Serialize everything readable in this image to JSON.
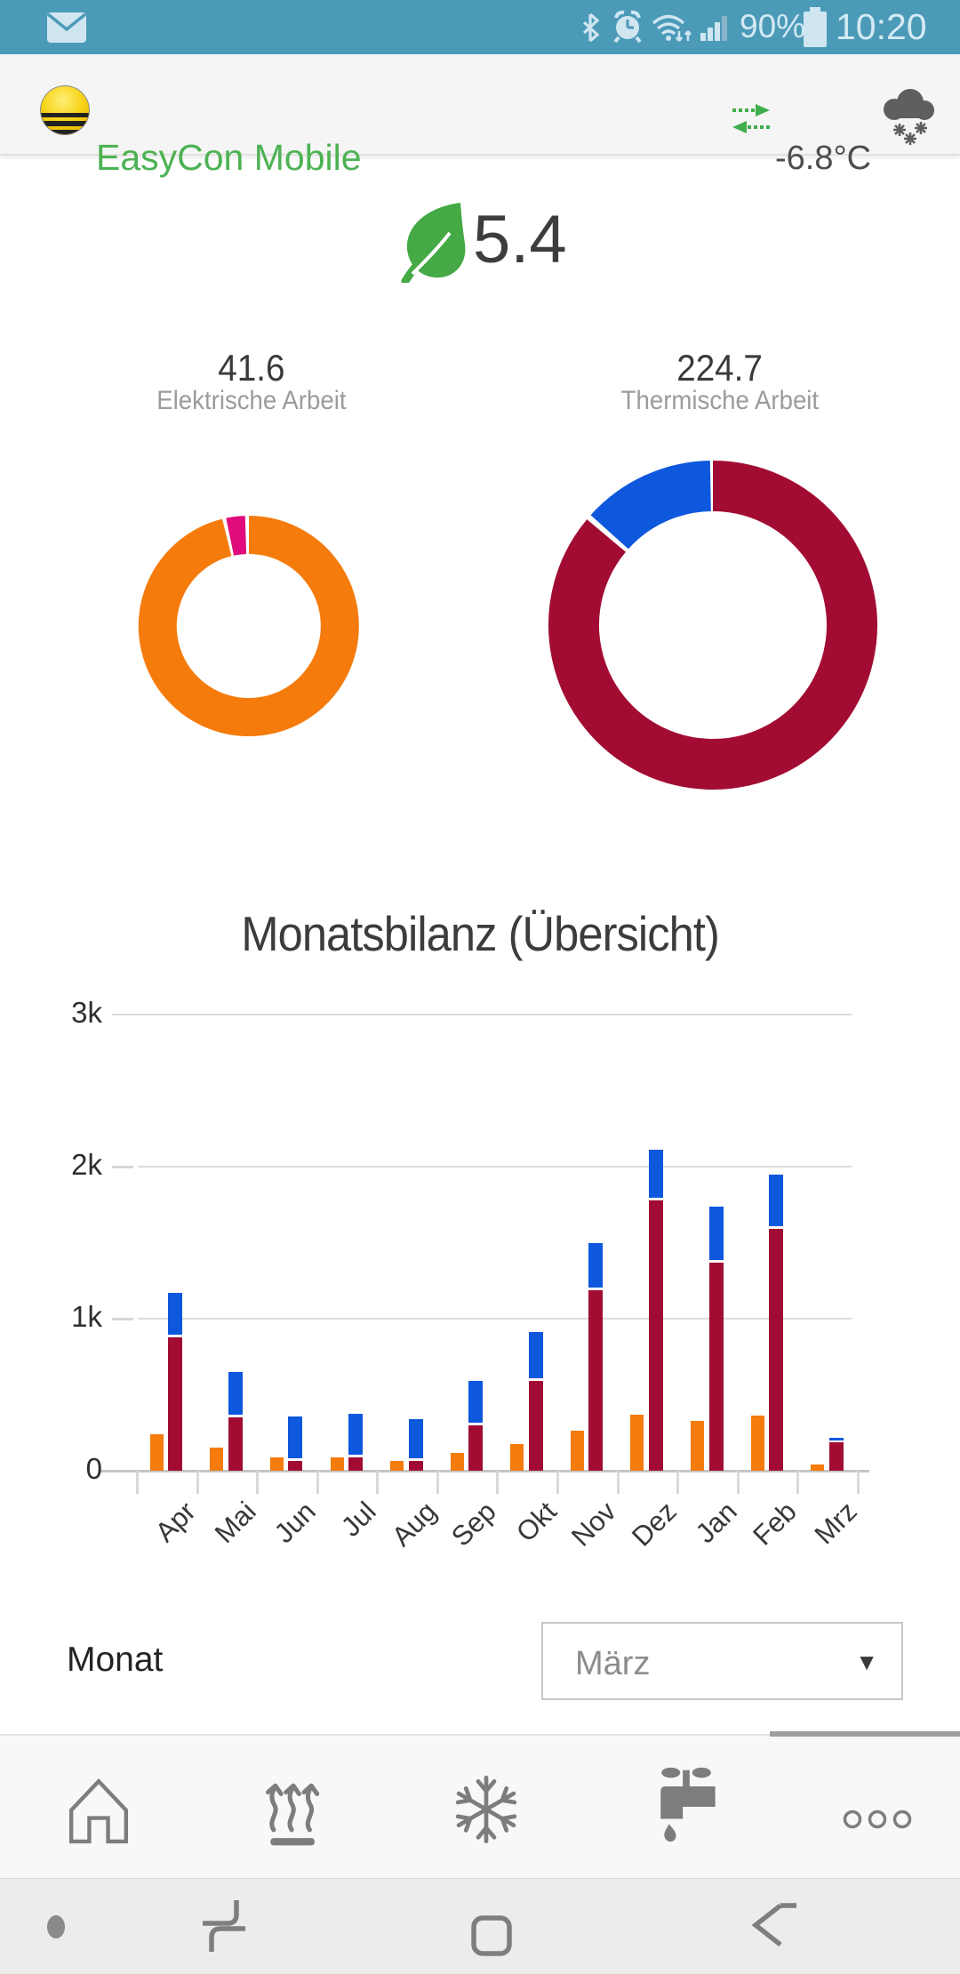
{
  "status_bar": {
    "time": "10:20",
    "battery": "90%",
    "icons": [
      "message-icon",
      "bluetooth-icon",
      "alarm-icon",
      "wifi-icon",
      "signal-icon",
      "battery-icon"
    ]
  },
  "header": {
    "app_title": "EasyCon Mobile",
    "temperature": "-6.8°C",
    "icons": [
      "sun-logo",
      "sync-arrows-icon",
      "snow-cloud-icon"
    ]
  },
  "summary": {
    "efficiency_value": "5.4",
    "icon": "leaf-icon"
  },
  "chart_data": [
    {
      "type": "donut",
      "value_label": "41.6",
      "title": "Elektrische Arbeit",
      "segments": [
        {
          "name": "segment-orange",
          "color": "#f57b0c",
          "start_deg": 0,
          "end_deg": 346
        },
        {
          "name": "segment-pink",
          "color": "#df0a7c",
          "start_deg": 348,
          "end_deg": 358
        }
      ]
    },
    {
      "type": "donut",
      "value_label": "224.7",
      "title": "Thermische Arbeit",
      "segments": [
        {
          "name": "segment-dark-red",
          "color": "#a20c33",
          "start_deg": 0,
          "end_deg": 310
        },
        {
          "name": "segment-blue",
          "color": "#0e58dd",
          "start_deg": 312,
          "end_deg": 359
        }
      ]
    },
    {
      "type": "bar",
      "title": "Monatsbilanz (Übersicht)",
      "categories": [
        "Apr",
        "Mai",
        "Jun",
        "Jul",
        "Aug",
        "Sep",
        "Okt",
        "Nov",
        "Dez",
        "Jan",
        "Feb",
        "Mrz"
      ],
      "series": [
        {
          "name": "series-orange",
          "color": "#f57b0c",
          "stack": "a",
          "values": [
            240,
            150,
            90,
            90,
            65,
            115,
            175,
            265,
            370,
            330,
            360,
            40
          ]
        },
        {
          "name": "series-dark-red",
          "color": "#a20c33",
          "stack": "b",
          "values": [
            880,
            350,
            65,
            90,
            65,
            300,
            590,
            1190,
            1780,
            1370,
            1590,
            190
          ]
        },
        {
          "name": "series-blue",
          "color": "#0e58dd",
          "stack": "b",
          "values": [
            290,
            300,
            290,
            285,
            275,
            290,
            320,
            310,
            330,
            365,
            360,
            25
          ]
        }
      ],
      "ylim": [
        0,
        3000
      ],
      "yticks": [
        {
          "value": 0,
          "label": "0"
        },
        {
          "value": 1000,
          "label": "1k"
        },
        {
          "value": 2000,
          "label": "2k"
        },
        {
          "value": 3000,
          "label": "3k"
        }
      ],
      "grid": true,
      "legend": false
    }
  ],
  "filter": {
    "label": "Monat",
    "selected": "März"
  },
  "bottom_nav": {
    "items": [
      {
        "name": "home"
      },
      {
        "name": "heating"
      },
      {
        "name": "cooling"
      },
      {
        "name": "water"
      },
      {
        "name": "more"
      }
    ]
  },
  "system_nav": {
    "items": [
      "recents",
      "home",
      "back"
    ]
  }
}
